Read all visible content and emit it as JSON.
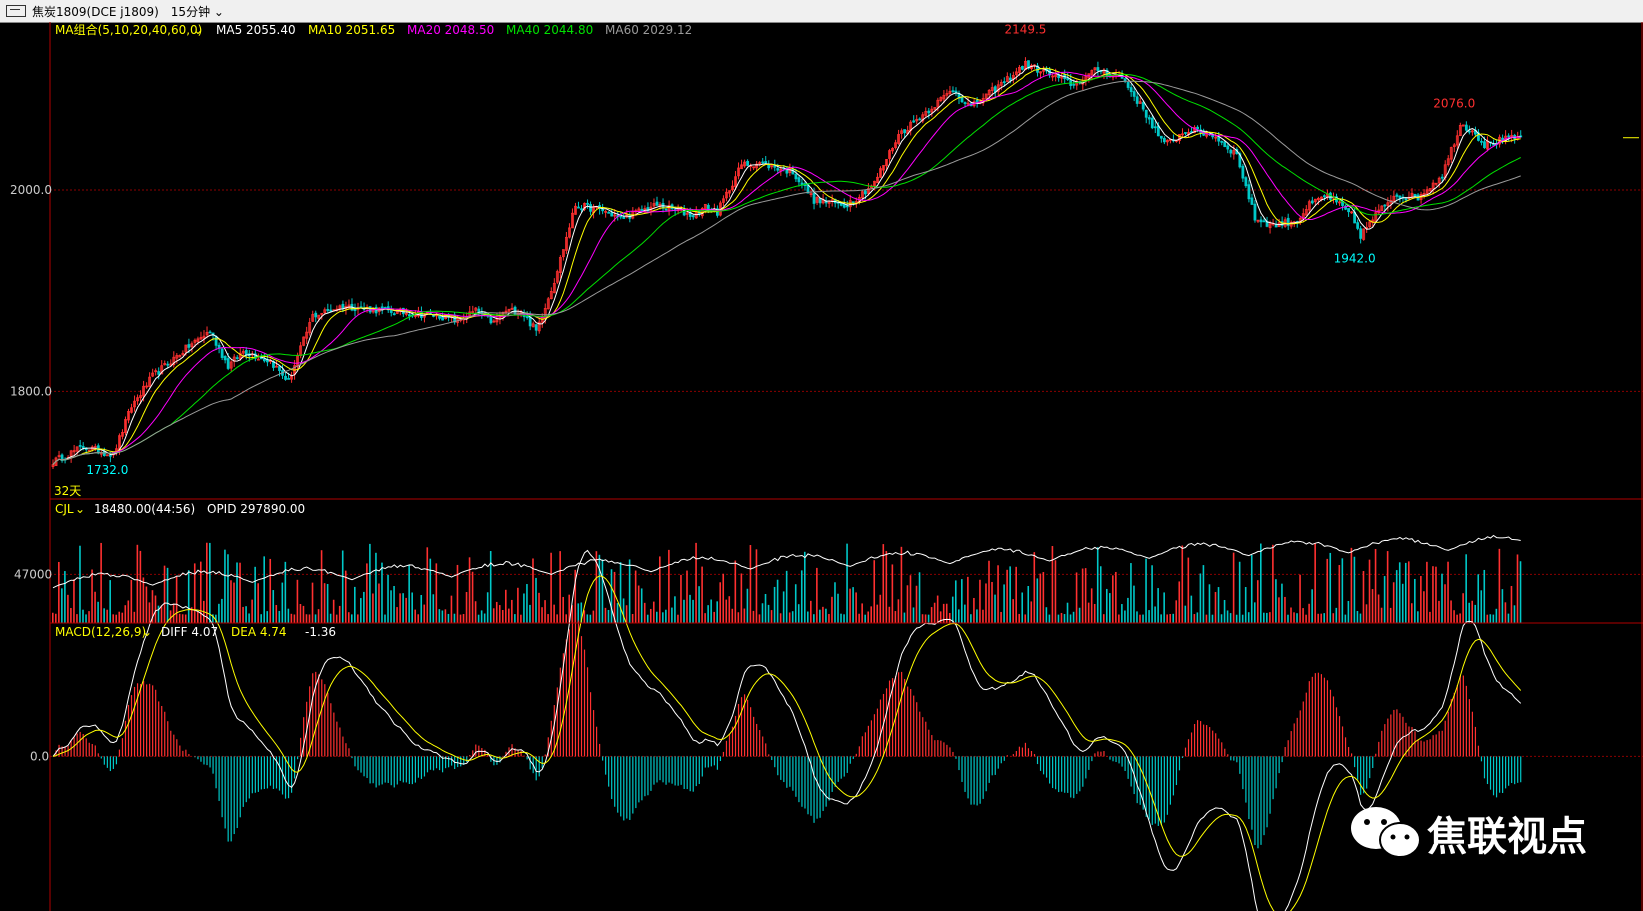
{
  "window": {
    "symbol_label": "焦炭1809(DCE j1809)",
    "period_label": "15分钟"
  },
  "chart_data": [
    {
      "type": "candlestick",
      "name": "price-panel",
      "ylim": [
        1695,
        2165
      ],
      "y_ticks": [
        {
          "value": 2000,
          "label": "2000.0"
        },
        {
          "value": 1800,
          "label": "1800.0"
        }
      ],
      "legend": {
        "group_label": "MA组合(5,10,20,40,60,0)",
        "items": [
          {
            "label": "MA5 2055.40",
            "color": "#ffffff"
          },
          {
            "label": "MA10 2051.65",
            "color": "#ffff00"
          },
          {
            "label": "MA20 2048.50",
            "color": "#ff00ff"
          },
          {
            "label": "MA40 2044.80",
            "color": "#00e000"
          },
          {
            "label": "MA60 2029.12",
            "color": "#9a9a9a"
          }
        ]
      },
      "annotations": [
        {
          "text": "2149.5",
          "x_index": 322,
          "value": 2149.5,
          "color": "#ff3030"
        },
        {
          "text": "2076.0",
          "x_index": 464,
          "value": 2076.0,
          "color": "#ff3030"
        },
        {
          "text": "1942.0",
          "x_index": 431,
          "value": 1942.0,
          "color": "#00ffff"
        },
        {
          "text": "1732.0",
          "x_index": 18,
          "value": 1732.0,
          "color": "#00ffff"
        }
      ],
      "span_label": "32天",
      "anchor_points": [
        [
          0,
          1730
        ],
        [
          10,
          1745
        ],
        [
          20,
          1737
        ],
        [
          26,
          1785
        ],
        [
          33,
          1815
        ],
        [
          45,
          1845
        ],
        [
          52,
          1860
        ],
        [
          58,
          1825
        ],
        [
          63,
          1840
        ],
        [
          72,
          1830
        ],
        [
          78,
          1810
        ],
        [
          86,
          1875
        ],
        [
          96,
          1885
        ],
        [
          110,
          1880
        ],
        [
          128,
          1875
        ],
        [
          134,
          1870
        ],
        [
          140,
          1880
        ],
        [
          146,
          1868
        ],
        [
          150,
          1880
        ],
        [
          155,
          1880
        ],
        [
          160,
          1860
        ],
        [
          166,
          1910
        ],
        [
          173,
          1985
        ],
        [
          182,
          1980
        ],
        [
          188,
          1972
        ],
        [
          200,
          1985
        ],
        [
          212,
          1975
        ],
        [
          216,
          1983
        ],
        [
          220,
          1978
        ],
        [
          228,
          2025
        ],
        [
          234,
          2027
        ],
        [
          245,
          2018
        ],
        [
          252,
          1990
        ],
        [
          262,
          1985
        ],
        [
          266,
          1992
        ],
        [
          272,
          2007
        ],
        [
          280,
          2055
        ],
        [
          290,
          2080
        ],
        [
          298,
          2100
        ],
        [
          304,
          2082
        ],
        [
          316,
          2110
        ],
        [
          322,
          2125
        ],
        [
          330,
          2115
        ],
        [
          338,
          2105
        ],
        [
          346,
          2120
        ],
        [
          354,
          2112
        ],
        [
          361,
          2080
        ],
        [
          368,
          2045
        ],
        [
          376,
          2060
        ],
        [
          384,
          2055
        ],
        [
          392,
          2035
        ],
        [
          398,
          1972
        ],
        [
          404,
          1965
        ],
        [
          412,
          1970
        ],
        [
          416,
          1985
        ],
        [
          422,
          1995
        ],
        [
          430,
          1975
        ],
        [
          433,
          1955
        ],
        [
          438,
          1975
        ],
        [
          444,
          1995
        ],
        [
          452,
          1993
        ],
        [
          460,
          2015
        ],
        [
          466,
          2065
        ],
        [
          470,
          2060
        ],
        [
          474,
          2045
        ],
        [
          480,
          2050
        ],
        [
          486,
          2052
        ]
      ],
      "colors": {
        "up": "#ff3030",
        "down": "#00c8c8",
        "grid": "#8b0000"
      }
    },
    {
      "type": "bar",
      "name": "volume-panel",
      "legend_label": "CJL",
      "volume_text": "18480.00(44:56)",
      "opid_text": "OPID 297890.00",
      "ylim": [
        0,
        112000
      ],
      "y_ticks": [
        {
          "value": 47000,
          "label": "47000"
        }
      ],
      "colors": {
        "up": "#ff3030",
        "down": "#00c8c8",
        "oi_line": "#ffffff"
      }
    },
    {
      "type": "bar",
      "name": "macd-panel",
      "legend_label": "MACD(12,26,9)",
      "diff_text": "DIFF 4.07",
      "dea_text": "DEA 4.74",
      "macd_text": "-1.36",
      "ylim": [
        -21,
        18
      ],
      "y_ticks": [
        {
          "value": 0,
          "label": "0.0"
        }
      ],
      "colors": {
        "diff": "#ffffff",
        "dea": "#ffff00",
        "pos": "#ff3030",
        "neg": "#00c8c8"
      }
    }
  ],
  "watermark": {
    "text": "焦联视点",
    "logo": "wechat-logo"
  }
}
